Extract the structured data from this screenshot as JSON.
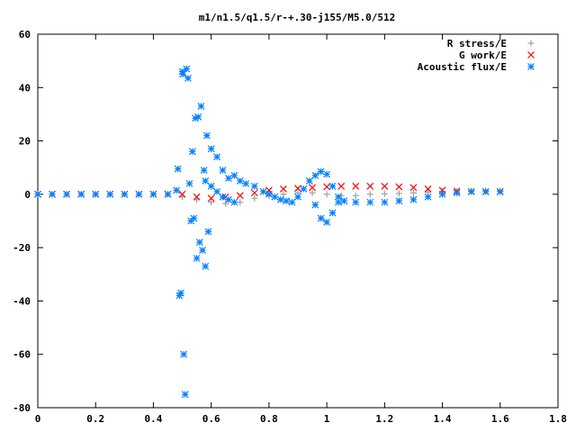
{
  "chart_data": {
    "type": "scatter",
    "title": "m1/n1.5/q1.5/r-+.30-j155/M5.0/512",
    "xlabel": "",
    "ylabel": "",
    "xlim": [
      0,
      1.8
    ],
    "ylim": [
      -80,
      60
    ],
    "x_ticks": [
      "0",
      "0.2",
      "0.4",
      "0.6",
      "0.8",
      "1",
      "1.2",
      "1.4",
      "1.6",
      "1.8"
    ],
    "y_ticks": [
      "60",
      "40",
      "20",
      "0",
      "-20",
      "-40",
      "-60",
      "-80"
    ],
    "x_tick_values": [
      0,
      0.2,
      0.4,
      0.6,
      0.8,
      1.0,
      1.2,
      1.4,
      1.6,
      1.8
    ],
    "y_tick_values": [
      60,
      40,
      20,
      0,
      -20,
      -40,
      -60,
      -80
    ],
    "legend_position": "top-right",
    "grid": false,
    "series": [
      {
        "name": "R stress/E",
        "marker": "plus",
        "color": "#a0a0a0",
        "x": [
          0.0,
          0.05,
          0.1,
          0.15,
          0.2,
          0.25,
          0.3,
          0.35,
          0.4,
          0.45,
          0.5,
          0.55,
          0.6,
          0.65,
          0.7,
          0.75,
          0.8,
          0.85,
          0.9,
          0.95,
          1.0,
          1.05,
          1.1,
          1.15,
          1.2,
          1.25,
          1.3,
          1.35,
          1.4,
          1.45,
          1.5,
          1.55,
          1.6
        ],
        "y": [
          0,
          0,
          0,
          0,
          0,
          0,
          0,
          0,
          0,
          0,
          -1,
          -2,
          -3,
          -3.5,
          -3,
          -1.5,
          -0.5,
          0,
          0.5,
          0.5,
          0,
          -0.5,
          -0.5,
          0,
          0.2,
          0.3,
          0.5,
          0.8,
          1.0,
          1.2,
          1.3,
          1.3,
          1.3
        ]
      },
      {
        "name": "G work/E",
        "marker": "cross",
        "color": "#ff0000",
        "x": [
          0.0,
          0.05,
          0.1,
          0.15,
          0.2,
          0.25,
          0.3,
          0.35,
          0.4,
          0.45,
          0.5,
          0.55,
          0.6,
          0.65,
          0.7,
          0.75,
          0.8,
          0.85,
          0.9,
          0.95,
          1.0,
          1.05,
          1.1,
          1.15,
          1.2,
          1.25,
          1.3,
          1.35,
          1.4,
          1.45,
          1.5,
          1.55,
          1.6
        ],
        "y": [
          0,
          0,
          0,
          0,
          0,
          0,
          0,
          0,
          0,
          0,
          0,
          -1,
          -1.5,
          -1,
          -0.5,
          0.5,
          1.5,
          2,
          2.2,
          2.5,
          2.8,
          3,
          3,
          3,
          3,
          2.8,
          2.5,
          2,
          1.5,
          1.2,
          1.0,
          1.0,
          1.0
        ]
      },
      {
        "name": "Acoustic flux/E",
        "marker": "star",
        "color": "#0080ff",
        "x": [
          0.0,
          0.05,
          0.1,
          0.15,
          0.2,
          0.25,
          0.3,
          0.35,
          0.4,
          0.45,
          0.48,
          0.485,
          0.49,
          0.495,
          0.5,
          0.502,
          0.505,
          0.51,
          0.515,
          0.52,
          0.525,
          0.53,
          0.535,
          0.54,
          0.545,
          0.55,
          0.555,
          0.56,
          0.565,
          0.57,
          0.575,
          0.58,
          0.585,
          0.59,
          0.6,
          0.62,
          0.64,
          0.66,
          0.68,
          0.7,
          0.72,
          0.75,
          0.78,
          0.8,
          0.82,
          0.84,
          0.86,
          0.88,
          0.9,
          0.92,
          0.94,
          0.96,
          0.98,
          1.0,
          1.02,
          1.04,
          1.06,
          1.1,
          1.15,
          1.2,
          1.25,
          1.3,
          1.35,
          1.4,
          1.45,
          1.5,
          1.55,
          1.6,
          0.96,
          0.98,
          1.0,
          1.02,
          1.04,
          0.58,
          0.6,
          0.62,
          0.64,
          0.66,
          0.68
        ],
        "y": [
          0,
          0,
          0,
          0,
          0,
          0,
          0,
          0,
          0,
          0,
          1.5,
          9.5,
          -38,
          -37,
          46,
          45,
          -60,
          -75,
          47,
          43.5,
          4,
          -10,
          16,
          -9,
          28.5,
          -24,
          29,
          -18,
          33,
          -21,
          9,
          -27,
          22,
          -14,
          17,
          14,
          9,
          6,
          7,
          5,
          4,
          3,
          1,
          0,
          -1,
          -2,
          -2.5,
          -3,
          -1,
          2,
          5,
          7,
          8.5,
          7.5,
          3,
          -1,
          -2.5,
          -3,
          -3,
          -3,
          -2.5,
          -2,
          -1,
          0,
          0.5,
          1,
          1,
          1,
          -4,
          -9,
          -10.5,
          -7,
          -3,
          5,
          3,
          1,
          -1,
          -2,
          -3
        ]
      }
    ]
  }
}
